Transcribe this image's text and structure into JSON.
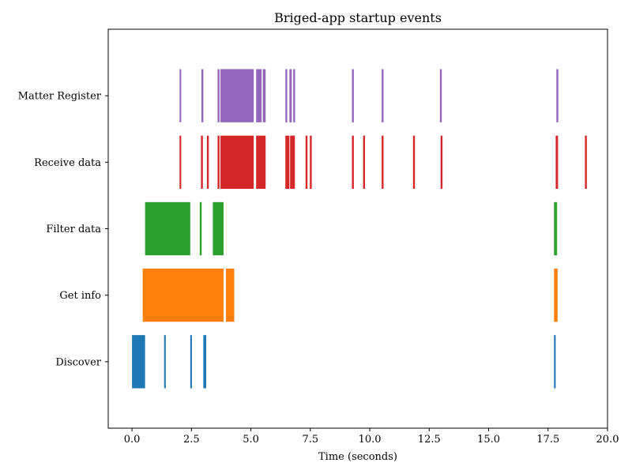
{
  "chart_data": {
    "type": "event-timeline",
    "title": "Briged-app startup events",
    "xlabel": "Time (seconds)",
    "ylabel": "",
    "xlim": [
      -1.0,
      20.0
    ],
    "x_ticks": [
      0.0,
      2.5,
      5.0,
      7.5,
      10.0,
      12.5,
      15.0,
      17.5,
      20.0
    ],
    "x_tick_labels": [
      "0.0",
      "2.5",
      "5.0",
      "7.5",
      "10.0",
      "12.5",
      "15.0",
      "17.5",
      "20.0"
    ],
    "grid": false,
    "categories": [
      "Discover",
      "Get info",
      "Filter data",
      "Receive data",
      "Matter Register"
    ],
    "series": [
      {
        "category": "Discover",
        "color": "#1f77b4",
        "events": [
          [
            0.0,
            0.55
          ],
          [
            1.35,
            1.42
          ],
          [
            2.45,
            2.52
          ],
          [
            3.0,
            3.12
          ],
          [
            17.75,
            17.82
          ]
        ]
      },
      {
        "category": "Get info",
        "color": "#ff7f0e",
        "events": [
          [
            0.45,
            3.85
          ],
          [
            3.95,
            4.3
          ],
          [
            17.75,
            17.9
          ]
        ]
      },
      {
        "category": "Filter data",
        "color": "#2ca02c",
        "events": [
          [
            0.55,
            2.45
          ],
          [
            2.85,
            2.93
          ],
          [
            3.4,
            3.85
          ],
          [
            17.75,
            17.88
          ]
        ]
      },
      {
        "category": "Receive data",
        "color": "#d62728",
        "events": [
          [
            2.0,
            2.07
          ],
          [
            2.9,
            2.98
          ],
          [
            3.15,
            3.23
          ],
          [
            3.6,
            3.68
          ],
          [
            3.72,
            5.12
          ],
          [
            5.22,
            5.62
          ],
          [
            6.45,
            6.62
          ],
          [
            6.65,
            6.85
          ],
          [
            7.3,
            7.38
          ],
          [
            7.48,
            7.56
          ],
          [
            9.25,
            9.33
          ],
          [
            9.72,
            9.8
          ],
          [
            10.5,
            10.58
          ],
          [
            11.82,
            11.9
          ],
          [
            12.98,
            13.06
          ],
          [
            17.82,
            17.92
          ],
          [
            19.05,
            19.13
          ]
        ]
      },
      {
        "category": "Matter Register",
        "color": "#9467bd",
        "events": [
          [
            2.0,
            2.07
          ],
          [
            2.92,
            3.0
          ],
          [
            3.6,
            3.68
          ],
          [
            3.72,
            5.12
          ],
          [
            5.22,
            5.45
          ],
          [
            5.5,
            5.62
          ],
          [
            6.45,
            6.53
          ],
          [
            6.62,
            6.72
          ],
          [
            6.78,
            6.86
          ],
          [
            9.25,
            9.33
          ],
          [
            10.5,
            10.58
          ],
          [
            12.95,
            13.03
          ],
          [
            17.85,
            17.93
          ]
        ]
      }
    ]
  }
}
